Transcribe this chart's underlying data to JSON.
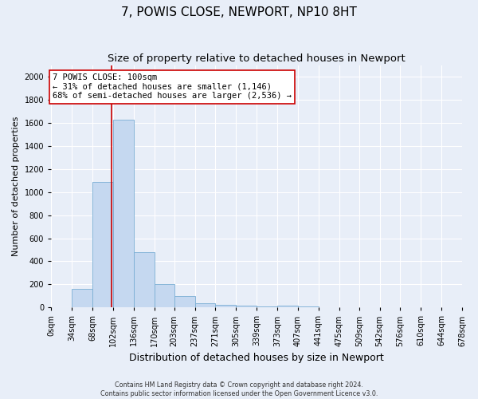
{
  "title": "7, POWIS CLOSE, NEWPORT, NP10 8HT",
  "subtitle": "Size of property relative to detached houses in Newport",
  "xlabel": "Distribution of detached houses by size in Newport",
  "ylabel": "Number of detached properties",
  "footer_line1": "Contains HM Land Registry data © Crown copyright and database right 2024.",
  "footer_line2": "Contains public sector information licensed under the Open Government Licence v3.0.",
  "bar_edges": [
    0,
    34,
    68,
    102,
    136,
    170,
    203,
    237,
    271,
    305,
    339,
    373,
    407,
    441,
    475,
    509,
    542,
    576,
    610,
    644,
    678
  ],
  "bar_heights": [
    0,
    160,
    1090,
    1630,
    480,
    200,
    100,
    35,
    20,
    15,
    10,
    15,
    10,
    0,
    0,
    0,
    0,
    0,
    0,
    0
  ],
  "bar_color": "#c5d8f0",
  "bar_edge_color": "#7aaed4",
  "property_size": 100,
  "annotation_text": "7 POWIS CLOSE: 100sqm\n← 31% of detached houses are smaller (1,146)\n68% of semi-detached houses are larger (2,536) →",
  "annotation_box_color": "#ffffff",
  "annotation_box_edge": "#cc0000",
  "vline_color": "#cc0000",
  "ylim": [
    0,
    2100
  ],
  "yticks": [
    0,
    200,
    400,
    600,
    800,
    1000,
    1200,
    1400,
    1600,
    1800,
    2000
  ],
  "background_color": "#e8eef8",
  "grid_color": "#ffffff",
  "title_fontsize": 11,
  "subtitle_fontsize": 9.5,
  "xlabel_fontsize": 9,
  "ylabel_fontsize": 8,
  "tick_fontsize": 7,
  "annot_fontsize": 7.5
}
